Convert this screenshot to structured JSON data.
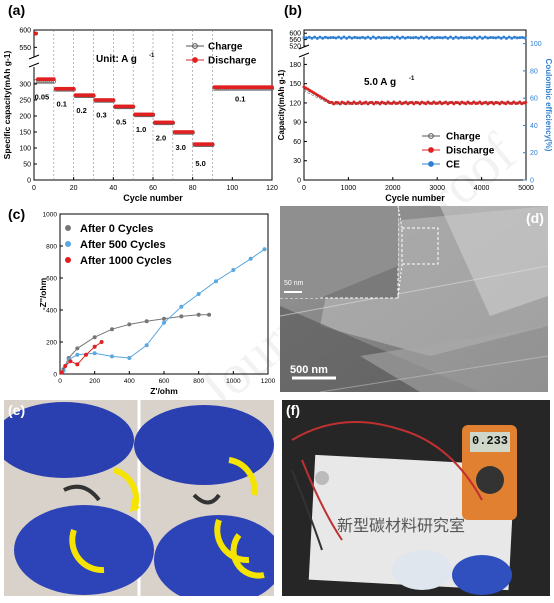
{
  "watermark": "Journal Pre-proof",
  "colors": {
    "charge": "#555555",
    "discharge": "#e02020",
    "ce": "#2f7fd0",
    "eis0": "#777777",
    "eis500": "#5aa8e0",
    "eis1000": "#e02020"
  },
  "panel_a": {
    "label": "(a)",
    "unit_text": "Unit: A g",
    "unit_sup": "-1",
    "legend": [
      "Charge",
      "Discharge"
    ],
    "rate_labels": [
      "0.05",
      "0.1",
      "0.2",
      "0.3",
      "0.5",
      "1.0",
      "2.0",
      "3.0",
      "5.0",
      "0.1"
    ]
  },
  "panel_b": {
    "label": "(b)",
    "rate_text": "5.0 A g",
    "rate_sup": "-1",
    "legend": [
      "Charge",
      "Discharge",
      "CE"
    ]
  },
  "panel_c": {
    "label": "(c)",
    "legend": [
      "After 0 Cycles",
      "After 500 Cycles",
      "After 1000 Cycles"
    ]
  },
  "panel_d": {
    "label": "(d)",
    "scale_small": "50 nm",
    "scale_big": "500 nm"
  },
  "panel_e": {
    "label": "(e)"
  },
  "panel_f": {
    "label": "(f)",
    "meter_reading": "0.233",
    "paper_text": "新型碳材料研究室"
  },
  "chart_data": [
    {
      "type": "scatter",
      "title": "",
      "xlabel": "Cycle number",
      "ylabel": "Specific capacity(mAh g-1)",
      "xlim": [
        0,
        120
      ],
      "ylim": [
        0,
        600
      ],
      "y_axis_break": [
        350,
        525
      ],
      "xticks": [
        0,
        20,
        40,
        60,
        80,
        100,
        120
      ],
      "yticks": [
        0,
        50,
        100,
        150,
        200,
        250,
        300,
        550,
        600
      ],
      "rates_A_g": [
        0.05,
        0.1,
        0.2,
        0.3,
        0.5,
        1.0,
        2.0,
        3.0,
        5.0,
        0.1
      ],
      "series": [
        {
          "name": "Charge",
          "segments": [
            [
              1,
              10,
              310
            ],
            [
              11,
              20,
              285
            ],
            [
              21,
              30,
              265
            ],
            [
              31,
              40,
              250
            ],
            [
              41,
              50,
              230
            ],
            [
              51,
              60,
              205
            ],
            [
              61,
              70,
              180
            ],
            [
              71,
              80,
              150
            ],
            [
              81,
              90,
              112
            ],
            [
              91,
              120,
              288
            ]
          ]
        },
        {
          "name": "Discharge",
          "first_point": [
            1,
            590
          ],
          "segments": [
            [
              2,
              10,
              315
            ],
            [
              11,
              20,
              285
            ],
            [
              21,
              30,
              265
            ],
            [
              31,
              40,
              250
            ],
            [
              41,
              50,
              230
            ],
            [
              51,
              60,
              205
            ],
            [
              61,
              70,
              180
            ],
            [
              71,
              80,
              150
            ],
            [
              81,
              90,
              112
            ],
            [
              91,
              120,
              290
            ]
          ]
        }
      ]
    },
    {
      "type": "line",
      "title": "",
      "xlabel": "Cycle number",
      "ylabel": "Capacity(mAh g-1)",
      "ylabel_right": "Coulombic efficiency(%)",
      "xlim": [
        0,
        5000
      ],
      "ylim": [
        0,
        620
      ],
      "y_axis_break": [
        190,
        520
      ],
      "xticks": [
        0,
        1000,
        2000,
        3000,
        4000,
        5000
      ],
      "yticks": [
        0,
        30,
        60,
        90,
        120,
        150,
        180,
        520,
        560,
        600
      ],
      "y2ticks": [
        0,
        20,
        40,
        60,
        80,
        100
      ],
      "series": [
        {
          "name": "Charge",
          "x": [
            0,
            100,
            300,
            600,
            1000,
            2000,
            3000,
            4000,
            5000
          ],
          "y": [
            140,
            128,
            122,
            120,
            119,
            120,
            120,
            120,
            121
          ]
        },
        {
          "name": "Discharge",
          "x": [
            0,
            100,
            300,
            600,
            1000,
            2000,
            3000,
            4000,
            5000
          ],
          "y": [
            145,
            130,
            123,
            120,
            119,
            120,
            120,
            120,
            121
          ]
        },
        {
          "name": "CE",
          "x": [
            0,
            1000,
            2000,
            3000,
            4000,
            5000
          ],
          "y": [
            100,
            100,
            100,
            100,
            100,
            100
          ]
        }
      ]
    },
    {
      "type": "scatter",
      "title": "",
      "xlabel": "Z'/ohm",
      "ylabel": "-Z''/ohm",
      "xlim": [
        0,
        1200
      ],
      "ylim": [
        0,
        1000
      ],
      "xticks": [
        0,
        200,
        400,
        600,
        800,
        1000,
        1200
      ],
      "yticks": [
        0,
        200,
        400,
        600,
        800,
        1000
      ],
      "series": [
        {
          "name": "After 0 Cycles",
          "x": [
            20,
            50,
            100,
            200,
            300,
            400,
            500,
            600,
            700,
            800,
            860
          ],
          "y": [
            30,
            100,
            160,
            230,
            280,
            310,
            330,
            345,
            360,
            370,
            370
          ]
        },
        {
          "name": "After 500 Cycles",
          "x": [
            20,
            50,
            100,
            200,
            300,
            400,
            500,
            600,
            700,
            800,
            900,
            1000,
            1100,
            1180
          ],
          "y": [
            20,
            90,
            120,
            130,
            110,
            100,
            180,
            320,
            420,
            500,
            580,
            650,
            720,
            780
          ]
        },
        {
          "name": "After 1000 Cycles",
          "x": [
            10,
            30,
            60,
            100,
            150,
            200,
            240
          ],
          "y": [
            10,
            50,
            80,
            60,
            120,
            170,
            200
          ]
        }
      ]
    }
  ]
}
